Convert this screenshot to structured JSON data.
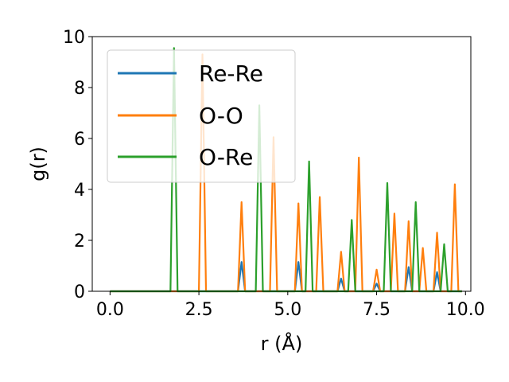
{
  "chart_data": {
    "type": "line",
    "xlabel": "r (Å)",
    "ylabel": "g(r)",
    "xlim": [
      -0.5,
      10.15
    ],
    "ylim": [
      0,
      10
    ],
    "x_ticks": [
      0.0,
      2.5,
      5.0,
      7.5,
      10.0
    ],
    "x_tick_labels": [
      "0.0",
      "2.5",
      "5.0",
      "7.5",
      "10.0"
    ],
    "y_ticks": [
      0,
      2,
      4,
      6,
      8,
      10
    ],
    "y_tick_labels": [
      "0",
      "2",
      "4",
      "6",
      "8",
      "10"
    ],
    "grid": false,
    "legend_position": "upper-left",
    "series": [
      {
        "name": "Re-Re",
        "color": "#1f77b4",
        "x": [
          0.0,
          3.6,
          3.7,
          3.8,
          5.2,
          5.3,
          5.4,
          6.4,
          6.5,
          6.6,
          7.4,
          7.5,
          7.6,
          8.3,
          8.4,
          8.5,
          9.1,
          9.2,
          9.3,
          9.9
        ],
        "y": [
          0,
          0,
          1.15,
          0,
          0,
          1.15,
          0,
          0,
          0.5,
          0,
          0,
          0.3,
          0,
          0,
          0.95,
          0,
          0,
          0.75,
          0,
          0
        ]
      },
      {
        "name": "O-O",
        "color": "#ff7f0e",
        "x": [
          0.0,
          2.5,
          2.6,
          2.7,
          3.6,
          3.7,
          3.8,
          4.5,
          4.6,
          4.7,
          5.2,
          5.3,
          5.4,
          5.8,
          5.9,
          6.0,
          6.4,
          6.5,
          6.6,
          6.9,
          7.0,
          7.1,
          7.4,
          7.5,
          7.6,
          7.9,
          8.0,
          8.1,
          8.3,
          8.4,
          8.5,
          8.7,
          8.8,
          8.9,
          9.1,
          9.2,
          9.3,
          9.6,
          9.7,
          9.8,
          9.9
        ],
        "y": [
          0,
          0,
          9.3,
          0,
          0,
          3.5,
          0,
          0,
          6.05,
          0,
          0,
          3.45,
          0,
          0,
          3.7,
          0,
          0,
          1.55,
          0,
          0,
          5.25,
          0,
          0,
          0.85,
          0,
          0,
          3.05,
          0,
          0,
          2.75,
          0,
          0,
          1.7,
          0,
          0,
          2.3,
          0,
          0,
          4.2,
          0,
          0
        ]
      },
      {
        "name": "O-Re",
        "color": "#2ca02c",
        "x": [
          0.0,
          1.7,
          1.8,
          1.9,
          4.1,
          4.2,
          4.3,
          5.5,
          5.6,
          5.7,
          6.7,
          6.8,
          6.9,
          7.7,
          7.8,
          7.9,
          8.5,
          8.6,
          8.7,
          9.3,
          9.4,
          9.5,
          9.9
        ],
        "y": [
          0,
          0,
          9.55,
          0,
          0,
          7.3,
          0,
          0,
          5.1,
          0,
          0,
          2.8,
          0,
          0,
          4.25,
          0,
          0,
          3.5,
          0,
          0,
          1.85,
          0,
          0
        ]
      }
    ]
  }
}
